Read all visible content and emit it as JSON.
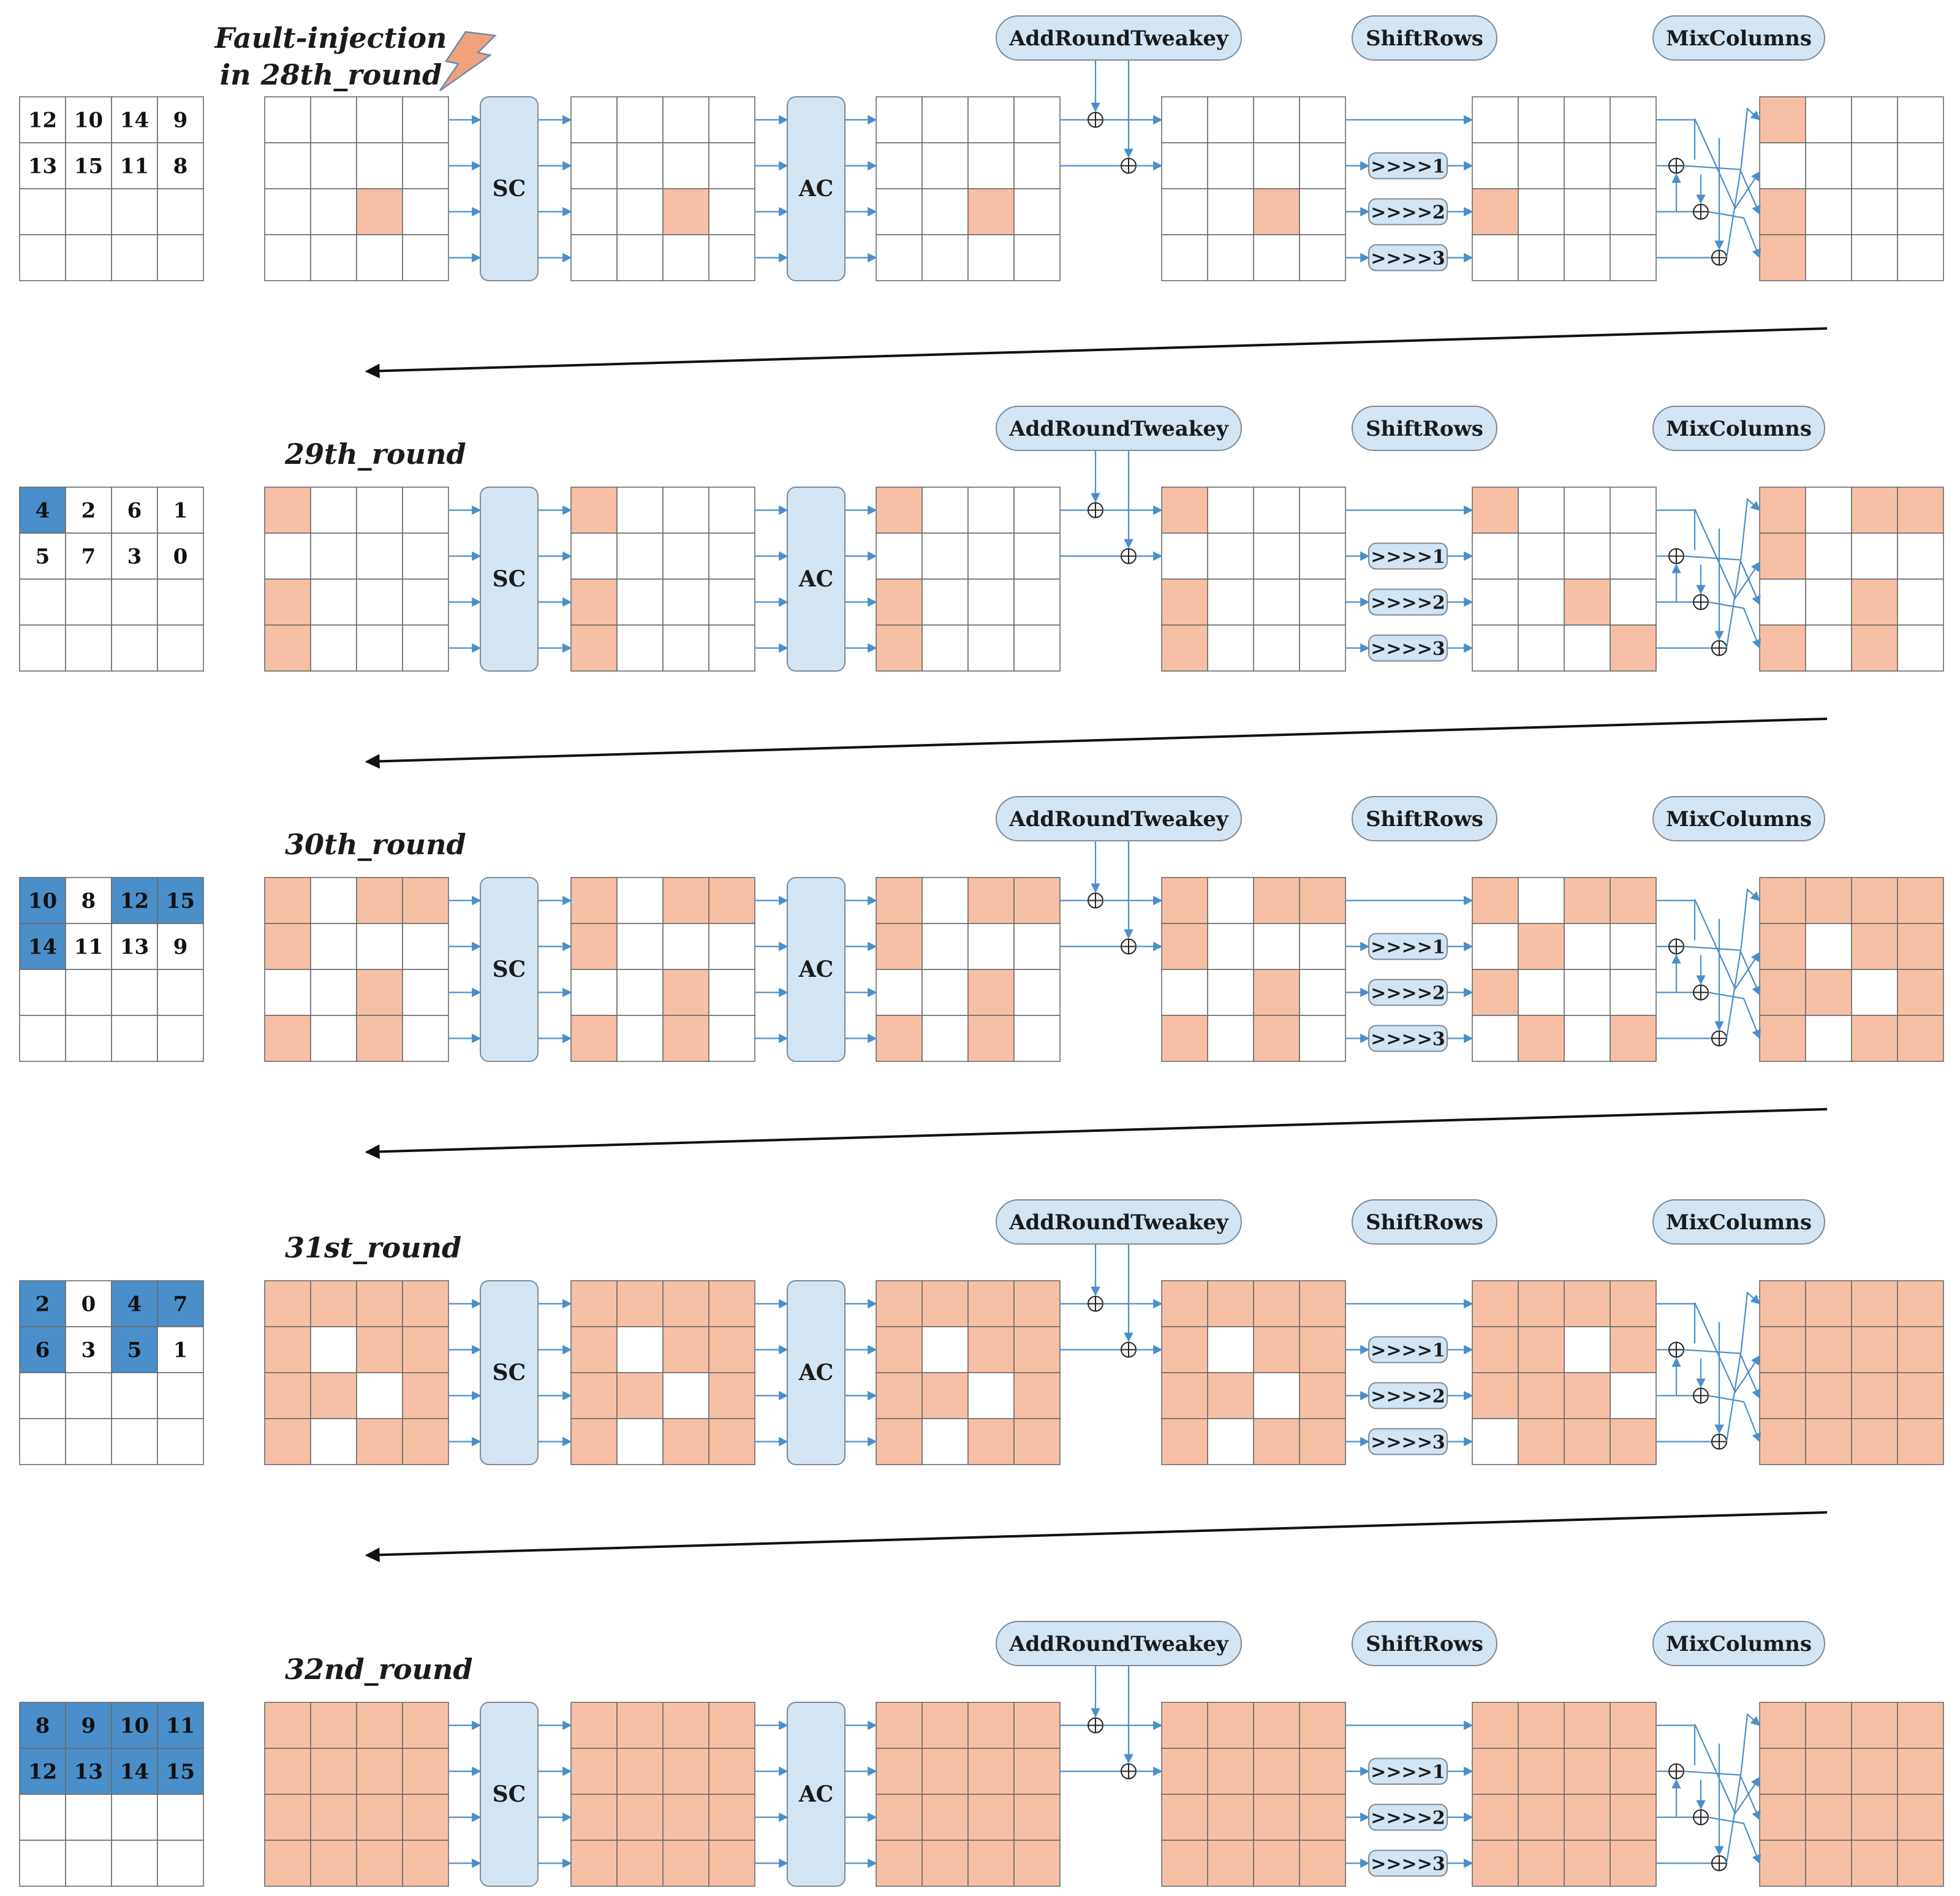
{
  "fault_label_line1": "Fault-injection",
  "fault_label_line2": "in 28th_round",
  "op_labels": {
    "sc": "SC",
    "ac": "AC",
    "add_round_tweakey": "AddRoundTweakey",
    "shift_rows": "ShiftRows",
    "mix_columns": "MixColumns",
    "shift1": ">>>>1",
    "shift2": ">>>>2",
    "shift3": ">>>>3"
  },
  "colors": {
    "fault_cell": "#f7c0a4",
    "empty_cell": "#ffffff",
    "tweakey_highlight": "#4a8fc9",
    "op_box": "#d3e4f3",
    "wire": "#4a8fc9",
    "lightning": "#f2a27a"
  },
  "rounds": [
    {
      "label": "",
      "tweakey": [
        [
          "12",
          "10",
          "14",
          "9"
        ],
        [
          "13",
          "15",
          "11",
          "8"
        ],
        [
          "",
          "",
          "",
          ""
        ],
        [
          "",
          "",
          "",
          ""
        ]
      ],
      "tweakey_highlight": [
        [
          0,
          0,
          0,
          0
        ],
        [
          0,
          0,
          0,
          0
        ],
        [
          0,
          0,
          0,
          0
        ],
        [
          0,
          0,
          0,
          0
        ]
      ],
      "states": [
        [
          [
            0,
            0,
            0,
            0
          ],
          [
            0,
            0,
            0,
            0
          ],
          [
            0,
            0,
            1,
            0
          ],
          [
            0,
            0,
            0,
            0
          ]
        ],
        [
          [
            0,
            0,
            0,
            0
          ],
          [
            0,
            0,
            0,
            0
          ],
          [
            0,
            0,
            1,
            0
          ],
          [
            0,
            0,
            0,
            0
          ]
        ],
        [
          [
            0,
            0,
            0,
            0
          ],
          [
            0,
            0,
            0,
            0
          ],
          [
            0,
            0,
            1,
            0
          ],
          [
            0,
            0,
            0,
            0
          ]
        ],
        [
          [
            0,
            0,
            0,
            0
          ],
          [
            0,
            0,
            0,
            0
          ],
          [
            0,
            0,
            1,
            0
          ],
          [
            0,
            0,
            0,
            0
          ]
        ],
        [
          [
            0,
            0,
            0,
            0
          ],
          [
            0,
            0,
            0,
            0
          ],
          [
            1,
            0,
            0,
            0
          ],
          [
            0,
            0,
            0,
            0
          ]
        ],
        [
          [
            1,
            0,
            0,
            0
          ],
          [
            0,
            0,
            0,
            0
          ],
          [
            1,
            0,
            0,
            0
          ],
          [
            1,
            0,
            0,
            0
          ]
        ]
      ]
    },
    {
      "label": "29th_round",
      "tweakey": [
        [
          "4",
          "2",
          "6",
          "1"
        ],
        [
          "5",
          "7",
          "3",
          "0"
        ],
        [
          "",
          "",
          "",
          ""
        ],
        [
          "",
          "",
          "",
          ""
        ]
      ],
      "tweakey_highlight": [
        [
          1,
          0,
          0,
          0
        ],
        [
          0,
          0,
          0,
          0
        ],
        [
          0,
          0,
          0,
          0
        ],
        [
          0,
          0,
          0,
          0
        ]
      ],
      "states": [
        [
          [
            1,
            0,
            0,
            0
          ],
          [
            0,
            0,
            0,
            0
          ],
          [
            1,
            0,
            0,
            0
          ],
          [
            1,
            0,
            0,
            0
          ]
        ],
        [
          [
            1,
            0,
            0,
            0
          ],
          [
            0,
            0,
            0,
            0
          ],
          [
            1,
            0,
            0,
            0
          ],
          [
            1,
            0,
            0,
            0
          ]
        ],
        [
          [
            1,
            0,
            0,
            0
          ],
          [
            0,
            0,
            0,
            0
          ],
          [
            1,
            0,
            0,
            0
          ],
          [
            1,
            0,
            0,
            0
          ]
        ],
        [
          [
            1,
            0,
            0,
            0
          ],
          [
            0,
            0,
            0,
            0
          ],
          [
            1,
            0,
            0,
            0
          ],
          [
            1,
            0,
            0,
            0
          ]
        ],
        [
          [
            1,
            0,
            0,
            0
          ],
          [
            0,
            0,
            0,
            0
          ],
          [
            0,
            0,
            1,
            0
          ],
          [
            0,
            0,
            0,
            1
          ]
        ],
        [
          [
            1,
            0,
            1,
            1
          ],
          [
            1,
            0,
            0,
            0
          ],
          [
            0,
            0,
            1,
            0
          ],
          [
            1,
            0,
            1,
            0
          ]
        ]
      ]
    },
    {
      "label": "30th_round",
      "tweakey": [
        [
          "10",
          "8",
          "12",
          "15"
        ],
        [
          "14",
          "11",
          "13",
          "9"
        ],
        [
          "",
          "",
          "",
          ""
        ],
        [
          "",
          "",
          "",
          ""
        ]
      ],
      "tweakey_highlight": [
        [
          1,
          0,
          1,
          1
        ],
        [
          1,
          0,
          0,
          0
        ],
        [
          0,
          0,
          0,
          0
        ],
        [
          0,
          0,
          0,
          0
        ]
      ],
      "states": [
        [
          [
            1,
            0,
            1,
            1
          ],
          [
            1,
            0,
            0,
            0
          ],
          [
            0,
            0,
            1,
            0
          ],
          [
            1,
            0,
            1,
            0
          ]
        ],
        [
          [
            1,
            0,
            1,
            1
          ],
          [
            1,
            0,
            0,
            0
          ],
          [
            0,
            0,
            1,
            0
          ],
          [
            1,
            0,
            1,
            0
          ]
        ],
        [
          [
            1,
            0,
            1,
            1
          ],
          [
            1,
            0,
            0,
            0
          ],
          [
            0,
            0,
            1,
            0
          ],
          [
            1,
            0,
            1,
            0
          ]
        ],
        [
          [
            1,
            0,
            1,
            1
          ],
          [
            1,
            0,
            0,
            0
          ],
          [
            0,
            0,
            1,
            0
          ],
          [
            1,
            0,
            1,
            0
          ]
        ],
        [
          [
            1,
            0,
            1,
            1
          ],
          [
            0,
            1,
            0,
            0
          ],
          [
            1,
            0,
            0,
            0
          ],
          [
            0,
            1,
            0,
            1
          ]
        ],
        [
          [
            1,
            1,
            1,
            1
          ],
          [
            1,
            0,
            1,
            1
          ],
          [
            1,
            1,
            0,
            1
          ],
          [
            1,
            0,
            1,
            1
          ]
        ]
      ]
    },
    {
      "label": "31st_round",
      "tweakey": [
        [
          "2",
          "0",
          "4",
          "7"
        ],
        [
          "6",
          "3",
          "5",
          "1"
        ],
        [
          "",
          "",
          "",
          ""
        ],
        [
          "",
          "",
          "",
          ""
        ]
      ],
      "tweakey_highlight": [
        [
          1,
          0,
          1,
          1
        ],
        [
          1,
          0,
          1,
          0
        ],
        [
          0,
          0,
          0,
          0
        ],
        [
          0,
          0,
          0,
          0
        ]
      ],
      "states": [
        [
          [
            1,
            1,
            1,
            1
          ],
          [
            1,
            0,
            1,
            1
          ],
          [
            1,
            1,
            0,
            1
          ],
          [
            1,
            0,
            1,
            1
          ]
        ],
        [
          [
            1,
            1,
            1,
            1
          ],
          [
            1,
            0,
            1,
            1
          ],
          [
            1,
            1,
            0,
            1
          ],
          [
            1,
            0,
            1,
            1
          ]
        ],
        [
          [
            1,
            1,
            1,
            1
          ],
          [
            1,
            0,
            1,
            1
          ],
          [
            1,
            1,
            0,
            1
          ],
          [
            1,
            0,
            1,
            1
          ]
        ],
        [
          [
            1,
            1,
            1,
            1
          ],
          [
            1,
            0,
            1,
            1
          ],
          [
            1,
            1,
            0,
            1
          ],
          [
            1,
            0,
            1,
            1
          ]
        ],
        [
          [
            1,
            1,
            1,
            1
          ],
          [
            1,
            1,
            0,
            1
          ],
          [
            1,
            1,
            1,
            0
          ],
          [
            0,
            1,
            1,
            1
          ]
        ],
        [
          [
            1,
            1,
            1,
            1
          ],
          [
            1,
            1,
            1,
            1
          ],
          [
            1,
            1,
            1,
            1
          ],
          [
            1,
            1,
            1,
            1
          ]
        ]
      ]
    },
    {
      "label": "32nd_round",
      "tweakey": [
        [
          "8",
          "9",
          "10",
          "11"
        ],
        [
          "12",
          "13",
          "14",
          "15"
        ],
        [
          "",
          "",
          "",
          ""
        ],
        [
          "",
          "",
          "",
          ""
        ]
      ],
      "tweakey_highlight": [
        [
          1,
          1,
          1,
          1
        ],
        [
          1,
          1,
          1,
          1
        ],
        [
          0,
          0,
          0,
          0
        ],
        [
          0,
          0,
          0,
          0
        ]
      ],
      "states": [
        [
          [
            1,
            1,
            1,
            1
          ],
          [
            1,
            1,
            1,
            1
          ],
          [
            1,
            1,
            1,
            1
          ],
          [
            1,
            1,
            1,
            1
          ]
        ],
        [
          [
            1,
            1,
            1,
            1
          ],
          [
            1,
            1,
            1,
            1
          ],
          [
            1,
            1,
            1,
            1
          ],
          [
            1,
            1,
            1,
            1
          ]
        ],
        [
          [
            1,
            1,
            1,
            1
          ],
          [
            1,
            1,
            1,
            1
          ],
          [
            1,
            1,
            1,
            1
          ],
          [
            1,
            1,
            1,
            1
          ]
        ],
        [
          [
            1,
            1,
            1,
            1
          ],
          [
            1,
            1,
            1,
            1
          ],
          [
            1,
            1,
            1,
            1
          ],
          [
            1,
            1,
            1,
            1
          ]
        ],
        [
          [
            1,
            1,
            1,
            1
          ],
          [
            1,
            1,
            1,
            1
          ],
          [
            1,
            1,
            1,
            1
          ],
          [
            1,
            1,
            1,
            1
          ]
        ],
        [
          [
            1,
            1,
            1,
            1
          ],
          [
            1,
            1,
            1,
            1
          ],
          [
            1,
            1,
            1,
            1
          ],
          [
            1,
            1,
            1,
            1
          ]
        ]
      ]
    }
  ]
}
